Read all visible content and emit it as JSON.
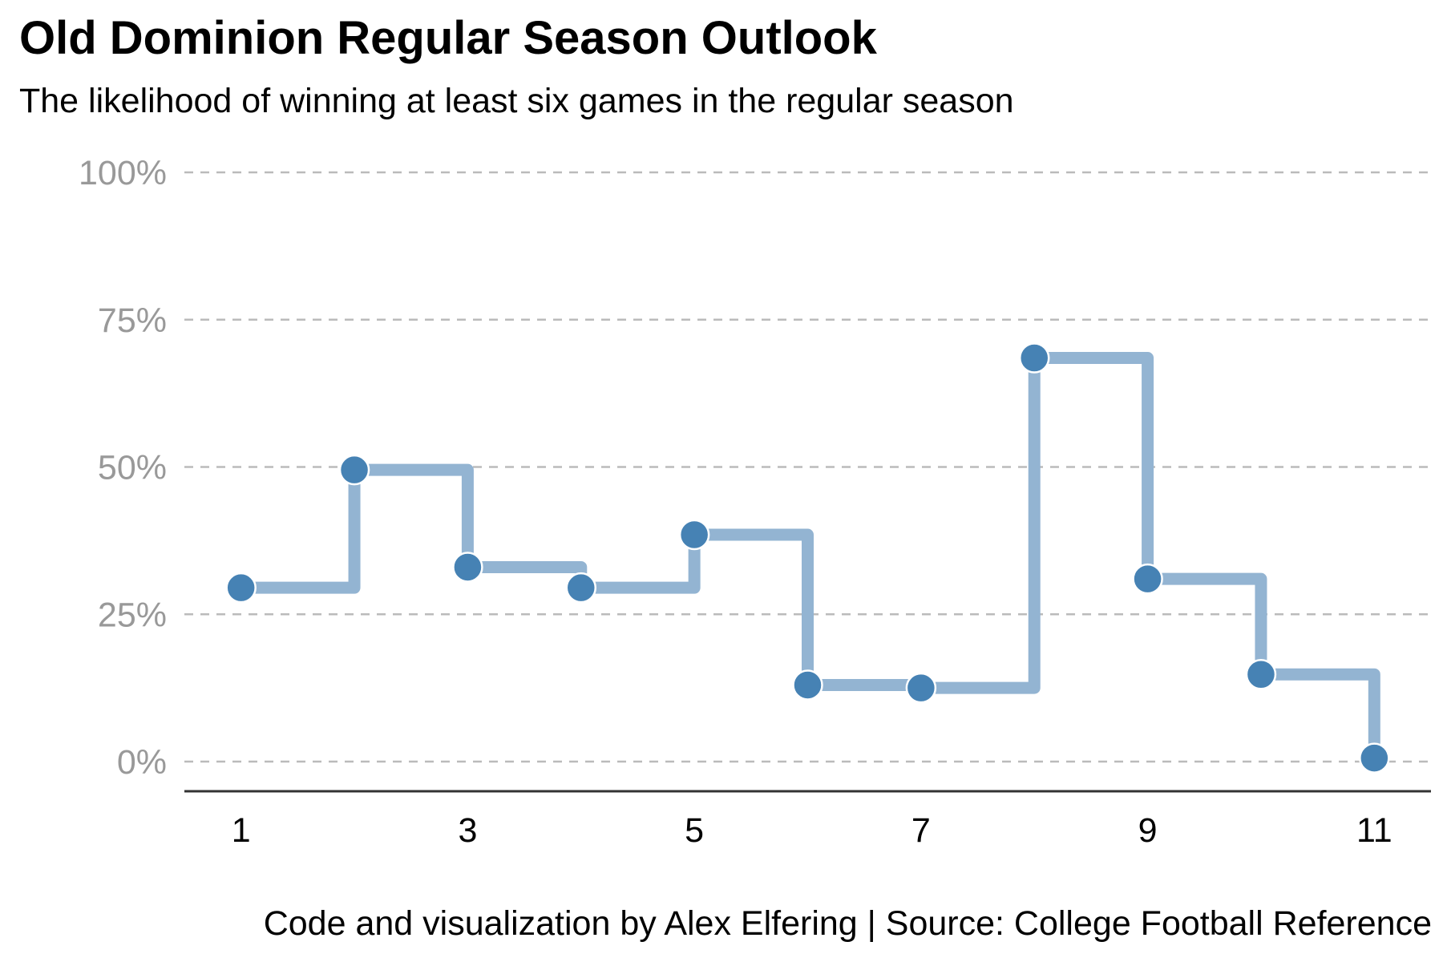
{
  "title": "Old Dominion Regular Season Outlook",
  "subtitle": "The likelihood of winning at least six games in the regular season",
  "caption": "Code and visualization by Alex Elfering | Source: College Football Reference",
  "colors": {
    "point": "#4682b4",
    "step_line": "#93b4d2",
    "grid": "#bbbbbb",
    "axis": "#333333",
    "tick_label": "#999999"
  },
  "chart_data": {
    "type": "line",
    "style": "step",
    "x": [
      1,
      2,
      3,
      4,
      5,
      6,
      7,
      8,
      9,
      10,
      11
    ],
    "y": [
      0.295,
      0.495,
      0.33,
      0.295,
      0.385,
      0.13,
      0.125,
      0.685,
      0.31,
      0.148,
      0.006
    ],
    "title": "Old Dominion Regular Season Outlook",
    "subtitle": "The likelihood of winning at least six games in the regular season",
    "xlabel": "",
    "ylabel": "",
    "xlim": [
      0.5,
      11.5
    ],
    "ylim": [
      0,
      1
    ],
    "x_ticks": [
      1,
      3,
      5,
      7,
      9,
      11
    ],
    "y_ticks": [
      0,
      0.25,
      0.5,
      0.75,
      1
    ],
    "y_tick_labels": [
      "0%",
      "25%",
      "50%",
      "75%",
      "100%"
    ],
    "grid": "horizontal dashed",
    "legend": "none"
  }
}
